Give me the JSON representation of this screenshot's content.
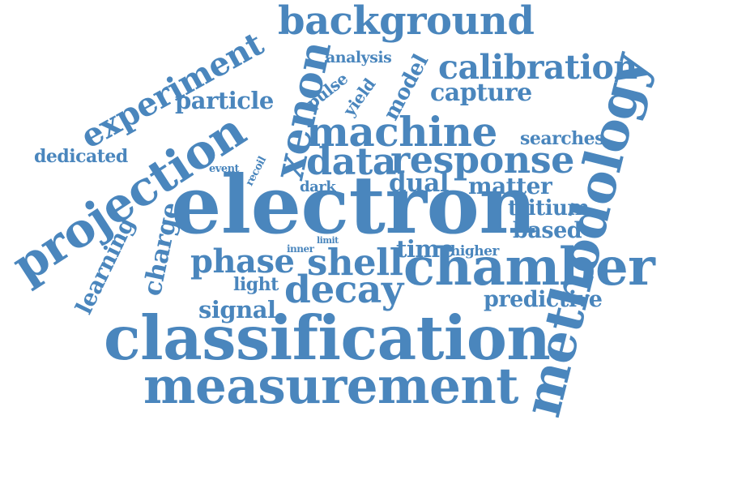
{
  "colors": {
    "word": "#4a86bd",
    "background": "#ffffff"
  },
  "words": {
    "background": "background",
    "experiment": "experiment",
    "xenon": "xenon",
    "analysis": "analysis",
    "model": "model",
    "calibration": "calibration",
    "methodology": "methodology",
    "particle": "particle",
    "pulse": "pulse",
    "yield": "yield",
    "capture": "capture",
    "projection": "projection",
    "machine": "machine",
    "dedicated": "dedicated",
    "searches": "searches",
    "event": "event",
    "recoil": "recoil",
    "data": "data",
    "response": "response",
    "dark": "dark",
    "dual": "dual",
    "matter": "matter",
    "electron": "electron",
    "tritium": "tritium",
    "learning": "learning",
    "charge": "charge",
    "limit": "limit",
    "based": "based",
    "inner": "inner",
    "time": "time",
    "higher": "higher",
    "phase": "phase",
    "shell": "shell",
    "chamber": "chamber",
    "light": "light",
    "decay": "decay",
    "predictive": "predictive",
    "signal": "signal",
    "classification": "classification",
    "measurement": "measurement"
  }
}
